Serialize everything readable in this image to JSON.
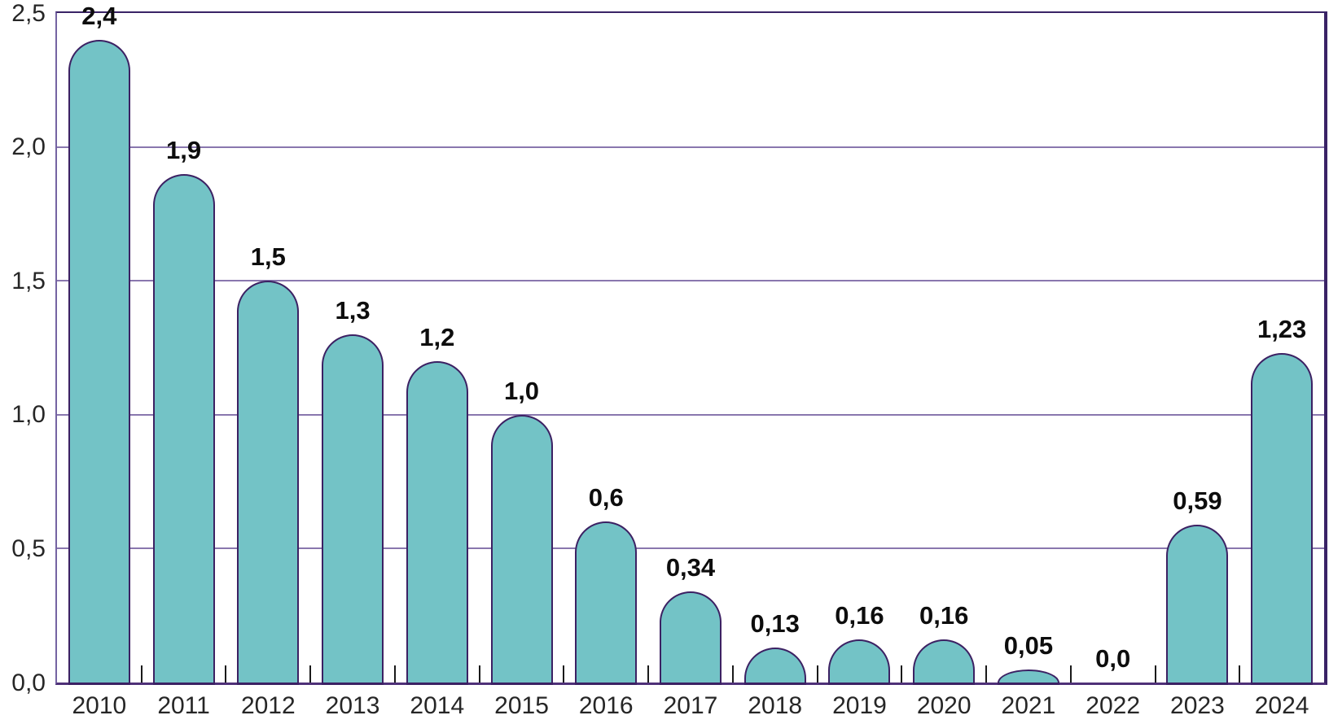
{
  "chart_data": {
    "type": "bar",
    "title": "",
    "xlabel": "",
    "ylabel": "",
    "categories": [
      "2010",
      "2011",
      "2012",
      "2013",
      "2014",
      "2015",
      "2016",
      "2017",
      "2018",
      "2019",
      "2020",
      "2021",
      "2022",
      "2023",
      "2024"
    ],
    "values": [
      2.4,
      1.9,
      1.5,
      1.3,
      1.2,
      1.0,
      0.6,
      0.34,
      0.13,
      0.16,
      0.16,
      0.05,
      0.0,
      0.59,
      1.23
    ],
    "value_labels": [
      "2,4",
      "1,9",
      "1,5",
      "1,3",
      "1,2",
      "1,0",
      "0,6",
      "0,34",
      "0,13",
      "0,16",
      "0,16",
      "0,05",
      "0,0",
      "0,59",
      "1,23"
    ],
    "y_ticks": [
      {
        "value": 0.0,
        "label": "0,0"
      },
      {
        "value": 0.5,
        "label": "0,5"
      },
      {
        "value": 1.0,
        "label": "1,0"
      },
      {
        "value": 1.5,
        "label": "1,5"
      },
      {
        "value": 2.0,
        "label": "2,0"
      },
      {
        "value": 2.5,
        "label": "2,5"
      }
    ],
    "gridline_values": [
      0.5,
      1.0,
      1.5,
      2.0
    ],
    "ylim": [
      0,
      2.5
    ],
    "grid": "horizontal",
    "legend": "none",
    "bar_style": "rounded-top",
    "decimal_separator": ",",
    "colors": {
      "background": "#ffffff",
      "bar_fill": "#73c3c6",
      "bar_stroke": "#3c2163",
      "gridline": "#8977ae",
      "frame": "#3a2366",
      "left_axis": "#7463a2",
      "baseline": "#4f3178",
      "x_tick": "#1a1a1a",
      "axis_label_text": "#262626",
      "value_label_text": "#0d0d0d"
    }
  }
}
